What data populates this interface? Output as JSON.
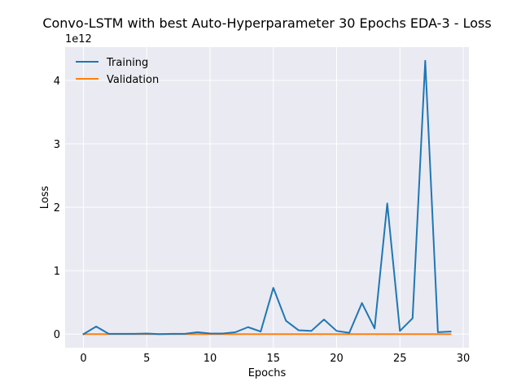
{
  "chart_data": {
    "type": "line",
    "title": "Convo-LSTM with best Auto-Hyperparameter 30 Epochs EDA-3 - Loss",
    "xlabel": "Epochs",
    "ylabel": "Loss",
    "y_scale_label": "1e12",
    "xlim": [
      -1.45,
      30.45
    ],
    "ylim": [
      -0.215,
      4.525
    ],
    "x_ticks": [
      0,
      5,
      10,
      15,
      20,
      25,
      30
    ],
    "y_ticks": [
      0,
      1,
      2,
      3,
      4
    ],
    "grid": true,
    "legend_position": "top-left",
    "x": [
      0,
      1,
      2,
      3,
      4,
      5,
      6,
      7,
      8,
      9,
      10,
      11,
      12,
      13,
      14,
      15,
      16,
      17,
      18,
      19,
      20,
      21,
      22,
      23,
      24,
      25,
      26,
      27,
      28,
      29
    ],
    "series": [
      {
        "name": "Training",
        "color": "#1f77b4",
        "values": [
          0.0,
          0.12,
          0.005,
          0.005,
          0.005,
          0.01,
          0.0,
          0.005,
          0.005,
          0.03,
          0.01,
          0.01,
          0.03,
          0.11,
          0.04,
          0.73,
          0.21,
          0.06,
          0.05,
          0.23,
          0.05,
          0.02,
          0.49,
          0.09,
          2.06,
          0.05,
          0.25,
          4.31,
          0.03,
          0.04
        ]
      },
      {
        "name": "Validation",
        "color": "#ff7f0e",
        "values": [
          0.0,
          0.0,
          0.0,
          0.0,
          0.0,
          0.0,
          0.0,
          0.0,
          0.0,
          0.0,
          0.0,
          0.0,
          0.0,
          0.0,
          0.0,
          0.0,
          0.0,
          0.0,
          0.0,
          0.0,
          0.0,
          0.0,
          0.0,
          0.0,
          0.0,
          0.0,
          0.0,
          0.0,
          0.0,
          0.0
        ]
      }
    ]
  }
}
